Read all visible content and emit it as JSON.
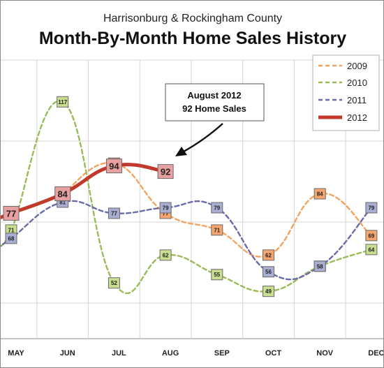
{
  "chart_data": {
    "type": "line",
    "subtitle": "Harrisonburg & Rockingham County",
    "title": "Month-By-Month Home Sales History",
    "categories": [
      "MAY",
      "JUN",
      "JUL",
      "AUG",
      "SEP",
      "OCT",
      "NOV",
      "DEC"
    ],
    "ylim": [
      32,
      132
    ],
    "grid": true,
    "legend_position": "top-right",
    "series": [
      {
        "name": "2009",
        "color": "#f4a460",
        "marker_color": "#f7a56e",
        "style": "dashed",
        "values": [
          null,
          84,
          95,
          77,
          71,
          62,
          84,
          69
        ]
      },
      {
        "name": "2010",
        "color": "#9bbb59",
        "marker_color": "#c7df8f",
        "style": "dashed",
        "values": [
          71,
          117,
          52,
          62,
          55,
          49,
          58,
          64
        ]
      },
      {
        "name": "2011",
        "color": "#6b6ba8",
        "marker_color": "#a9aed3",
        "style": "dashed",
        "values": [
          68,
          81,
          77,
          79,
          79,
          56,
          58,
          79
        ]
      },
      {
        "name": "2012",
        "color": "#c0392b",
        "marker_color": "#e9a0a0",
        "style": "solid",
        "values": [
          77,
          84,
          94,
          92,
          null,
          null,
          null,
          null
        ]
      }
    ],
    "annotation": {
      "line1": "August 2012",
      "line2": "92 Home Sales",
      "target_series": "2012",
      "target_category": "AUG"
    }
  }
}
